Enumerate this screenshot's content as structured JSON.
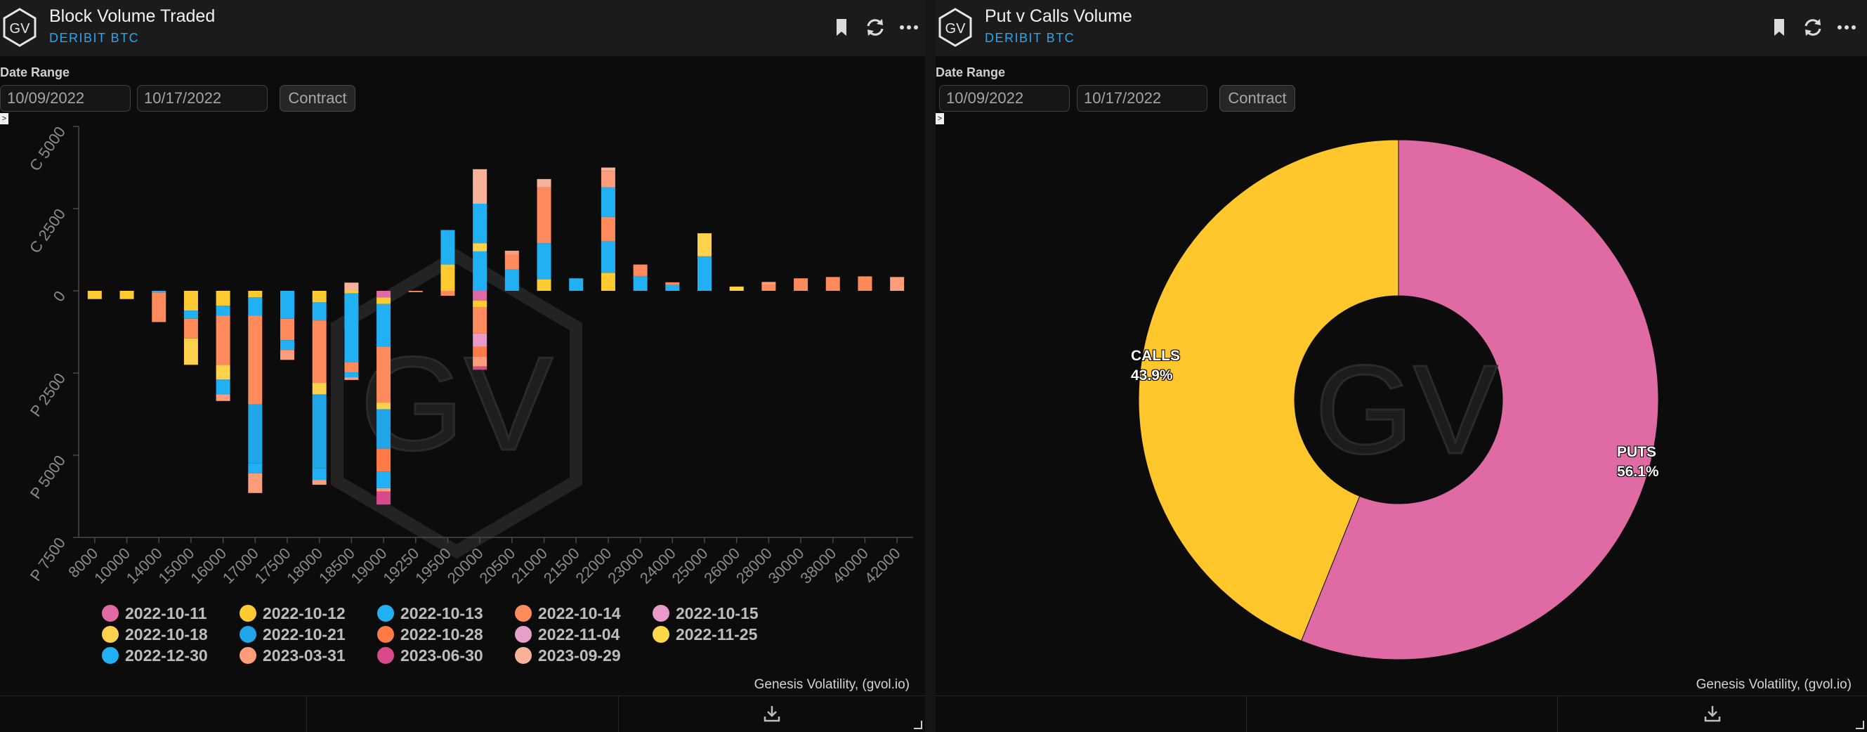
{
  "left_panel": {
    "title": "Block Volume Traded",
    "subtitle": "DERIBIT BTC",
    "date_range_label": "Date Range",
    "start_date": "10/09/2022",
    "end_date": "10/17/2022",
    "contract_label": "Contract",
    "credit": "Genesis Volatility, (gvol.io)",
    "logo_text": "GV",
    "watermark_text": "GV",
    "expand_glyph": ">"
  },
  "right_panel": {
    "title": "Put v Calls Volume",
    "subtitle": "DERIBIT BTC",
    "date_range_label": "Date Range",
    "start_date": "10/09/2022",
    "end_date": "10/17/2022",
    "contract_label": "Contract",
    "credit": "Genesis Volatility, (gvol.io)",
    "logo_text": "GV",
    "watermark_text": "GV",
    "expand_glyph": ">"
  },
  "icons": [
    "bookmark-icon",
    "refresh-icon",
    "more-icon",
    "download-icon"
  ],
  "chart_data": [
    {
      "type": "bar",
      "stacked": true,
      "categories": [
        "8000",
        "10000",
        "14000",
        "15000",
        "16000",
        "17000",
        "17500",
        "18000",
        "18500",
        "19000",
        "19250",
        "19500",
        "20000",
        "20500",
        "21000",
        "21500",
        "22000",
        "23000",
        "24000",
        "25000",
        "26000",
        "28000",
        "30000",
        "38000",
        "40000",
        "42000"
      ],
      "ytick_labels": [
        "C 5000",
        "C 2500",
        "0",
        "P 2500",
        "P 5000",
        "P 7500"
      ],
      "ylim": [
        -7500,
        5000
      ],
      "grid": false,
      "legend_position": "bottom",
      "series": [
        {
          "name": "2022-10-11",
          "color": "#e06aa3",
          "values": [
            0,
            0,
            0,
            0,
            0,
            0,
            0,
            0,
            0,
            -200,
            0,
            0,
            -300,
            0,
            0,
            0,
            0,
            0,
            0,
            0,
            0,
            0,
            0,
            0,
            0,
            0
          ]
        },
        {
          "name": "2022-10-12",
          "color": "#ffcb30",
          "values": [
            -250,
            -250,
            0,
            -600,
            -450,
            -200,
            0,
            -350,
            -80,
            -200,
            0,
            800,
            -200,
            0,
            350,
            0,
            550,
            0,
            0,
            0,
            0,
            0,
            0,
            0,
            0,
            0
          ]
        },
        {
          "name": "2022-10-13",
          "color": "#21b0f3",
          "values": [
            0,
            0,
            -50,
            -250,
            -300,
            -550,
            -850,
            -550,
            -2100,
            -1300,
            0,
            1050,
            1200,
            650,
            1100,
            380,
            950,
            450,
            180,
            1050,
            0,
            0,
            0,
            0,
            0,
            0
          ]
        },
        {
          "name": "2022-10-14",
          "color": "#ff8a5c",
          "values": [
            0,
            0,
            -900,
            -600,
            -1500,
            -2700,
            -650,
            -1900,
            -300,
            -1700,
            -40,
            -150,
            -800,
            450,
            1700,
            0,
            750,
            350,
            80,
            0,
            0,
            180,
            380,
            420,
            440,
            0
          ]
        },
        {
          "name": "2022-10-15",
          "color": "#e89ac8",
          "values": [
            0,
            0,
            0,
            0,
            0,
            0,
            0,
            0,
            0,
            0,
            0,
            0,
            -400,
            0,
            0,
            0,
            0,
            0,
            0,
            0,
            0,
            0,
            0,
            0,
            0,
            0
          ]
        },
        {
          "name": "2022-10-18",
          "color": "#ffd24d",
          "values": [
            0,
            0,
            0,
            -800,
            -450,
            0,
            0,
            -350,
            0,
            -200,
            0,
            0,
            250,
            0,
            0,
            0,
            0,
            0,
            0,
            700,
            130,
            0,
            0,
            0,
            0,
            0
          ]
        },
        {
          "name": "2022-10-21",
          "color": "#1fa5e8",
          "values": [
            0,
            0,
            0,
            0,
            0,
            -1800,
            0,
            -2250,
            0,
            -1200,
            0,
            0,
            0,
            0,
            0,
            0,
            0,
            0,
            0,
            0,
            0,
            0,
            0,
            0,
            0,
            0
          ]
        },
        {
          "name": "2022-10-28",
          "color": "#ff7a44",
          "values": [
            0,
            0,
            0,
            0,
            0,
            0,
            0,
            0,
            0,
            -700,
            0,
            0,
            -300,
            0,
            0,
            0,
            0,
            0,
            0,
            0,
            0,
            0,
            0,
            0,
            0,
            0
          ]
        },
        {
          "name": "2022-11-04",
          "color": "#e5a0c8",
          "values": [
            0,
            0,
            0,
            0,
            0,
            0,
            0,
            0,
            0,
            0,
            0,
            0,
            0,
            0,
            0,
            0,
            0,
            0,
            0,
            0,
            0,
            0,
            0,
            0,
            0,
            0
          ]
        },
        {
          "name": "2022-11-25",
          "color": "#ffd84a",
          "values": [
            0,
            0,
            0,
            0,
            0,
            0,
            0,
            0,
            0,
            0,
            0,
            0,
            0,
            0,
            0,
            0,
            0,
            0,
            0,
            0,
            0,
            0,
            0,
            0,
            0,
            0
          ]
        },
        {
          "name": "2022-12-30",
          "color": "#21b0f3",
          "values": [
            0,
            0,
            0,
            0,
            -450,
            -300,
            -300,
            -350,
            -150,
            -500,
            0,
            0,
            1200,
            0,
            0,
            0,
            900,
            0,
            0,
            0,
            0,
            0,
            0,
            0,
            0,
            0
          ]
        },
        {
          "name": "2023-03-31",
          "color": "#ff9c7a",
          "values": [
            0,
            0,
            0,
            0,
            -200,
            -600,
            -300,
            -150,
            -80,
            -100,
            0,
            0,
            -300,
            120,
            0,
            0,
            500,
            0,
            0,
            0,
            0,
            90,
            0,
            0,
            0,
            420
          ]
        },
        {
          "name": "2023-06-30",
          "color": "#d94a8c",
          "values": [
            0,
            0,
            0,
            0,
            0,
            0,
            0,
            0,
            0,
            -400,
            0,
            0,
            -100,
            0,
            0,
            0,
            0,
            0,
            0,
            0,
            0,
            0,
            0,
            0,
            0,
            0
          ]
        },
        {
          "name": "2023-09-29",
          "color": "#f8b29a",
          "values": [
            0,
            0,
            0,
            0,
            0,
            0,
            0,
            0,
            250,
            0,
            0,
            0,
            1050,
            0,
            250,
            0,
            100,
            0,
            0,
            0,
            0,
            0,
            0,
            0,
            0,
            0
          ]
        }
      ]
    },
    {
      "type": "pie",
      "donut": true,
      "slices": [
        {
          "label": "PUTS",
          "value": 56.1,
          "display": "56.1%",
          "color": "#e06aa3"
        },
        {
          "label": "CALLS",
          "value": 43.9,
          "display": "43.9%",
          "color": "#ffc72c"
        }
      ]
    }
  ]
}
